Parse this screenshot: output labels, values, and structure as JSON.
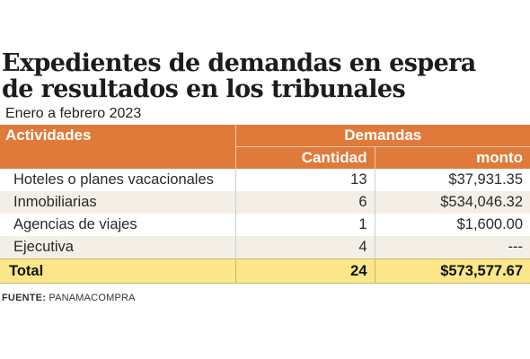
{
  "title": {
    "line1": "Expedientes de demandas en espera",
    "line2": "de resultados en los tribunales"
  },
  "subtitle": "Enero a febrero 2023",
  "table": {
    "header": {
      "actividades": "Actividades",
      "demandas": "Demandas",
      "cantidad": "Cantidad",
      "monto": "monto"
    },
    "rows": [
      {
        "actividad": "Hoteles o planes vacacionales",
        "cantidad": "13",
        "monto": "$37,931.35"
      },
      {
        "actividad": "Inmobiliarias",
        "cantidad": "6",
        "monto": "$534,046.32"
      },
      {
        "actividad": "Agencias de viajes",
        "cantidad": "1",
        "monto": "$1,600.00"
      },
      {
        "actividad": "Ejecutiva",
        "cantidad": "4",
        "monto": "---"
      }
    ],
    "total": {
      "label": "Total",
      "cantidad": "24",
      "monto": "$573,577.67"
    }
  },
  "source": {
    "label": "FUENTE:",
    "value": "PANAMACOMPRA"
  },
  "colors": {
    "header": "#e07a3a",
    "row_alt": "#f3efe6",
    "total": "#fbe789"
  }
}
